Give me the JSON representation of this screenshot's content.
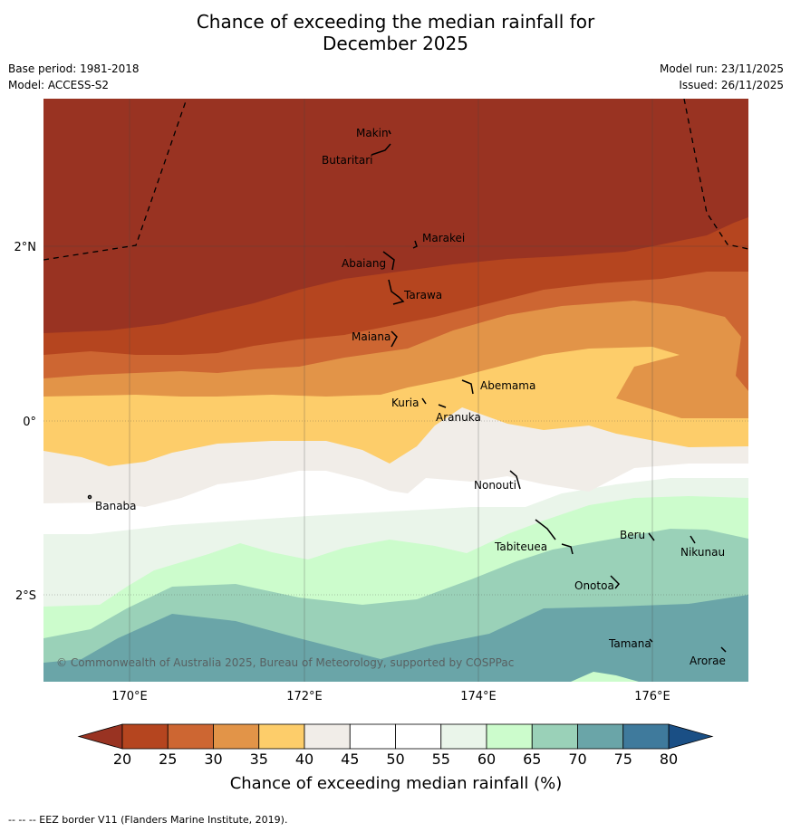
{
  "title_line1": "Chance of exceeding the median rainfall for",
  "title_line2": "December 2025",
  "base_period": "Base period: 1981-2018",
  "model": "Model: ACCESS-S2",
  "model_run": "Model run: 23/11/2025",
  "issued": "Issued: 26/11/2025",
  "copyright": "© Commonwealth of Australia 2025, Bureau of Meteorology, supported by COSPPac",
  "lat_labels": [
    "2°N",
    "0°",
    "2°S"
  ],
  "lon_labels": [
    "170°E",
    "172°E",
    "174°E",
    "176°E"
  ],
  "islands": [
    "Makin",
    "Butaritari",
    "Marakei",
    "Abaiang",
    "Tarawa",
    "Maiana",
    "Abemama",
    "Kuria",
    "Aranuka",
    "Banaba",
    "Nonouti",
    "Beru",
    "Nikunau",
    "Tabiteuea",
    "Onotoa",
    "Tamana",
    "Arorae"
  ],
  "colorbar": {
    "ticks": [
      "20",
      "25",
      "30",
      "35",
      "40",
      "45",
      "50",
      "55",
      "60",
      "65",
      "70",
      "75",
      "80"
    ],
    "label": "Chance of exceeding median rainfall (%)",
    "colors": [
      "#b5451f",
      "#cd6632",
      "#e29448",
      "#fdcd6a",
      "#f1ede8",
      "#ffffff",
      "#ffffff",
      "#eaf5ea",
      "#ccfccc",
      "#9ad1b8",
      "#6aa5a8",
      "#3f7a9c"
    ],
    "low_color": "#993322",
    "high_color": "#1a4f85"
  },
  "footer": "--  --  -- EEZ border V11 (Flanders Marine Institute, 2019)."
}
